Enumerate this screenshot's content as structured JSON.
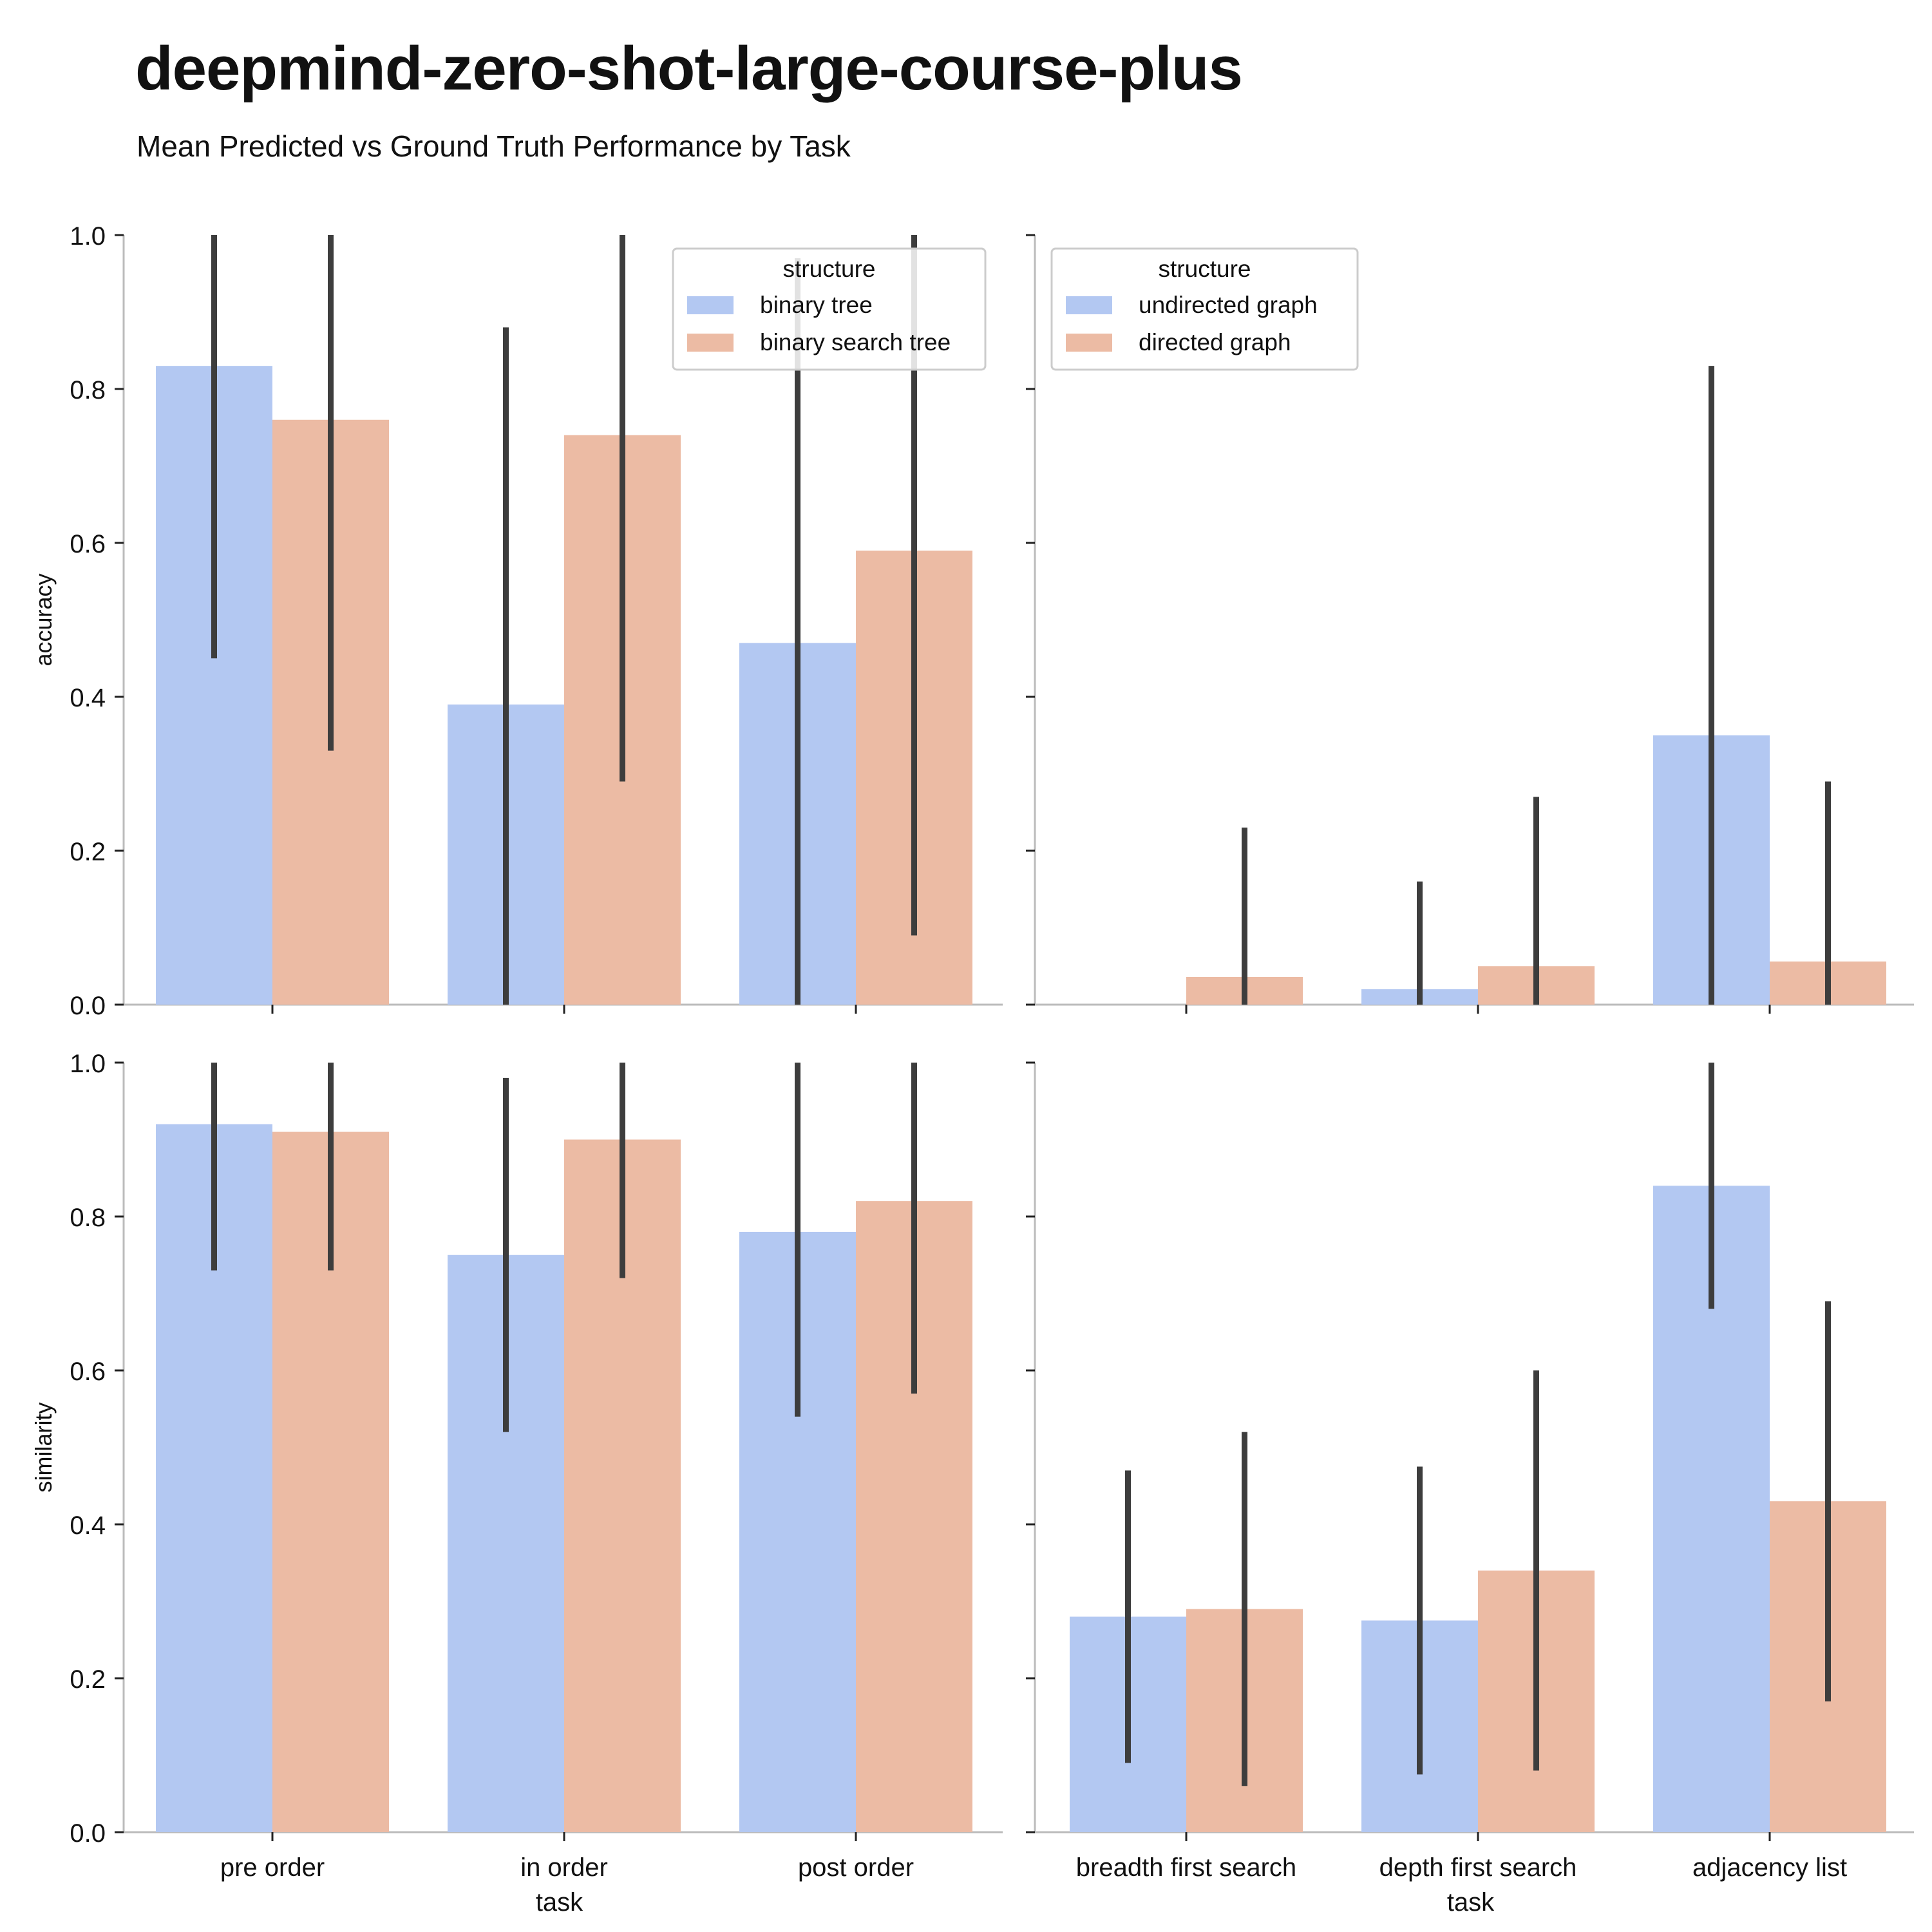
{
  "header": {
    "title": "deepmind-zero-shot-large-course-plus",
    "subtitle": "Mean Predicted vs Ground Truth Performance by Task"
  },
  "colors": {
    "series_a": "#b3c8f2",
    "series_b": "#ecbba4",
    "error_bar": "#3d3d3d",
    "axis": "#bbbbbb",
    "text": "#111111"
  },
  "chart_data": [
    {
      "type": "bar",
      "panel": "top-left",
      "ylabel": "accuracy",
      "xlabel": "",
      "ylim": [
        0,
        1
      ],
      "yticks": [
        "0.0",
        "0.2",
        "0.4",
        "0.6",
        "0.8",
        "1.0"
      ],
      "categories": [
        "pre order",
        "in order",
        "post order"
      ],
      "legend": {
        "title": "structure",
        "placement": "top-right"
      },
      "series": [
        {
          "name": "binary tree",
          "values": [
            0.83,
            0.39,
            0.47
          ],
          "error_low": [
            0.45,
            0.0,
            0.0
          ],
          "error_high": [
            1.0,
            0.88,
            0.97
          ]
        },
        {
          "name": "binary search tree",
          "values": [
            0.76,
            0.74,
            0.59
          ],
          "error_low": [
            0.33,
            0.29,
            0.09
          ],
          "error_high": [
            1.0,
            1.0,
            1.0
          ]
        }
      ]
    },
    {
      "type": "bar",
      "panel": "top-right",
      "ylabel": "",
      "xlabel": "",
      "ylim": [
        0,
        1
      ],
      "categories": [
        "breadth first search",
        "depth first search",
        "adjacency list"
      ],
      "legend": {
        "title": "structure",
        "placement": "top-left"
      },
      "series": [
        {
          "name": "undirected graph",
          "values": [
            0.0,
            0.02,
            0.35
          ],
          "error_low": [
            null,
            0.0,
            0.0
          ],
          "error_high": [
            null,
            0.16,
            0.83
          ]
        },
        {
          "name": "directed graph",
          "values": [
            0.036,
            0.05,
            0.056
          ],
          "error_low": [
            0.0,
            0.0,
            0.0
          ],
          "error_high": [
            0.23,
            0.27,
            0.29
          ]
        }
      ]
    },
    {
      "type": "bar",
      "panel": "bottom-left",
      "ylabel": "similarity",
      "xlabel": "task",
      "ylim": [
        0,
        1
      ],
      "yticks": [
        "0.0",
        "0.2",
        "0.4",
        "0.6",
        "0.8",
        "1.0"
      ],
      "categories": [
        "pre order",
        "in order",
        "post order"
      ],
      "series": [
        {
          "name": "binary tree",
          "values": [
            0.92,
            0.75,
            0.78
          ],
          "error_low": [
            0.73,
            0.52,
            0.54
          ],
          "error_high": [
            1.0,
            0.98,
            1.0
          ]
        },
        {
          "name": "binary search tree",
          "values": [
            0.91,
            0.9,
            0.82
          ],
          "error_low": [
            0.73,
            0.72,
            0.57
          ],
          "error_high": [
            1.0,
            1.0,
            1.0
          ]
        }
      ]
    },
    {
      "type": "bar",
      "panel": "bottom-right",
      "ylabel": "",
      "xlabel": "task",
      "ylim": [
        0,
        1
      ],
      "categories": [
        "breadth first search",
        "depth first search",
        "adjacency list"
      ],
      "series": [
        {
          "name": "undirected graph",
          "values": [
            0.28,
            0.275,
            0.84
          ],
          "error_low": [
            0.09,
            0.075,
            0.68
          ],
          "error_high": [
            0.47,
            0.475,
            1.0
          ]
        },
        {
          "name": "directed graph",
          "values": [
            0.29,
            0.34,
            0.43
          ],
          "error_low": [
            0.06,
            0.08,
            0.17
          ],
          "error_high": [
            0.52,
            0.6,
            0.69
          ]
        }
      ]
    }
  ]
}
